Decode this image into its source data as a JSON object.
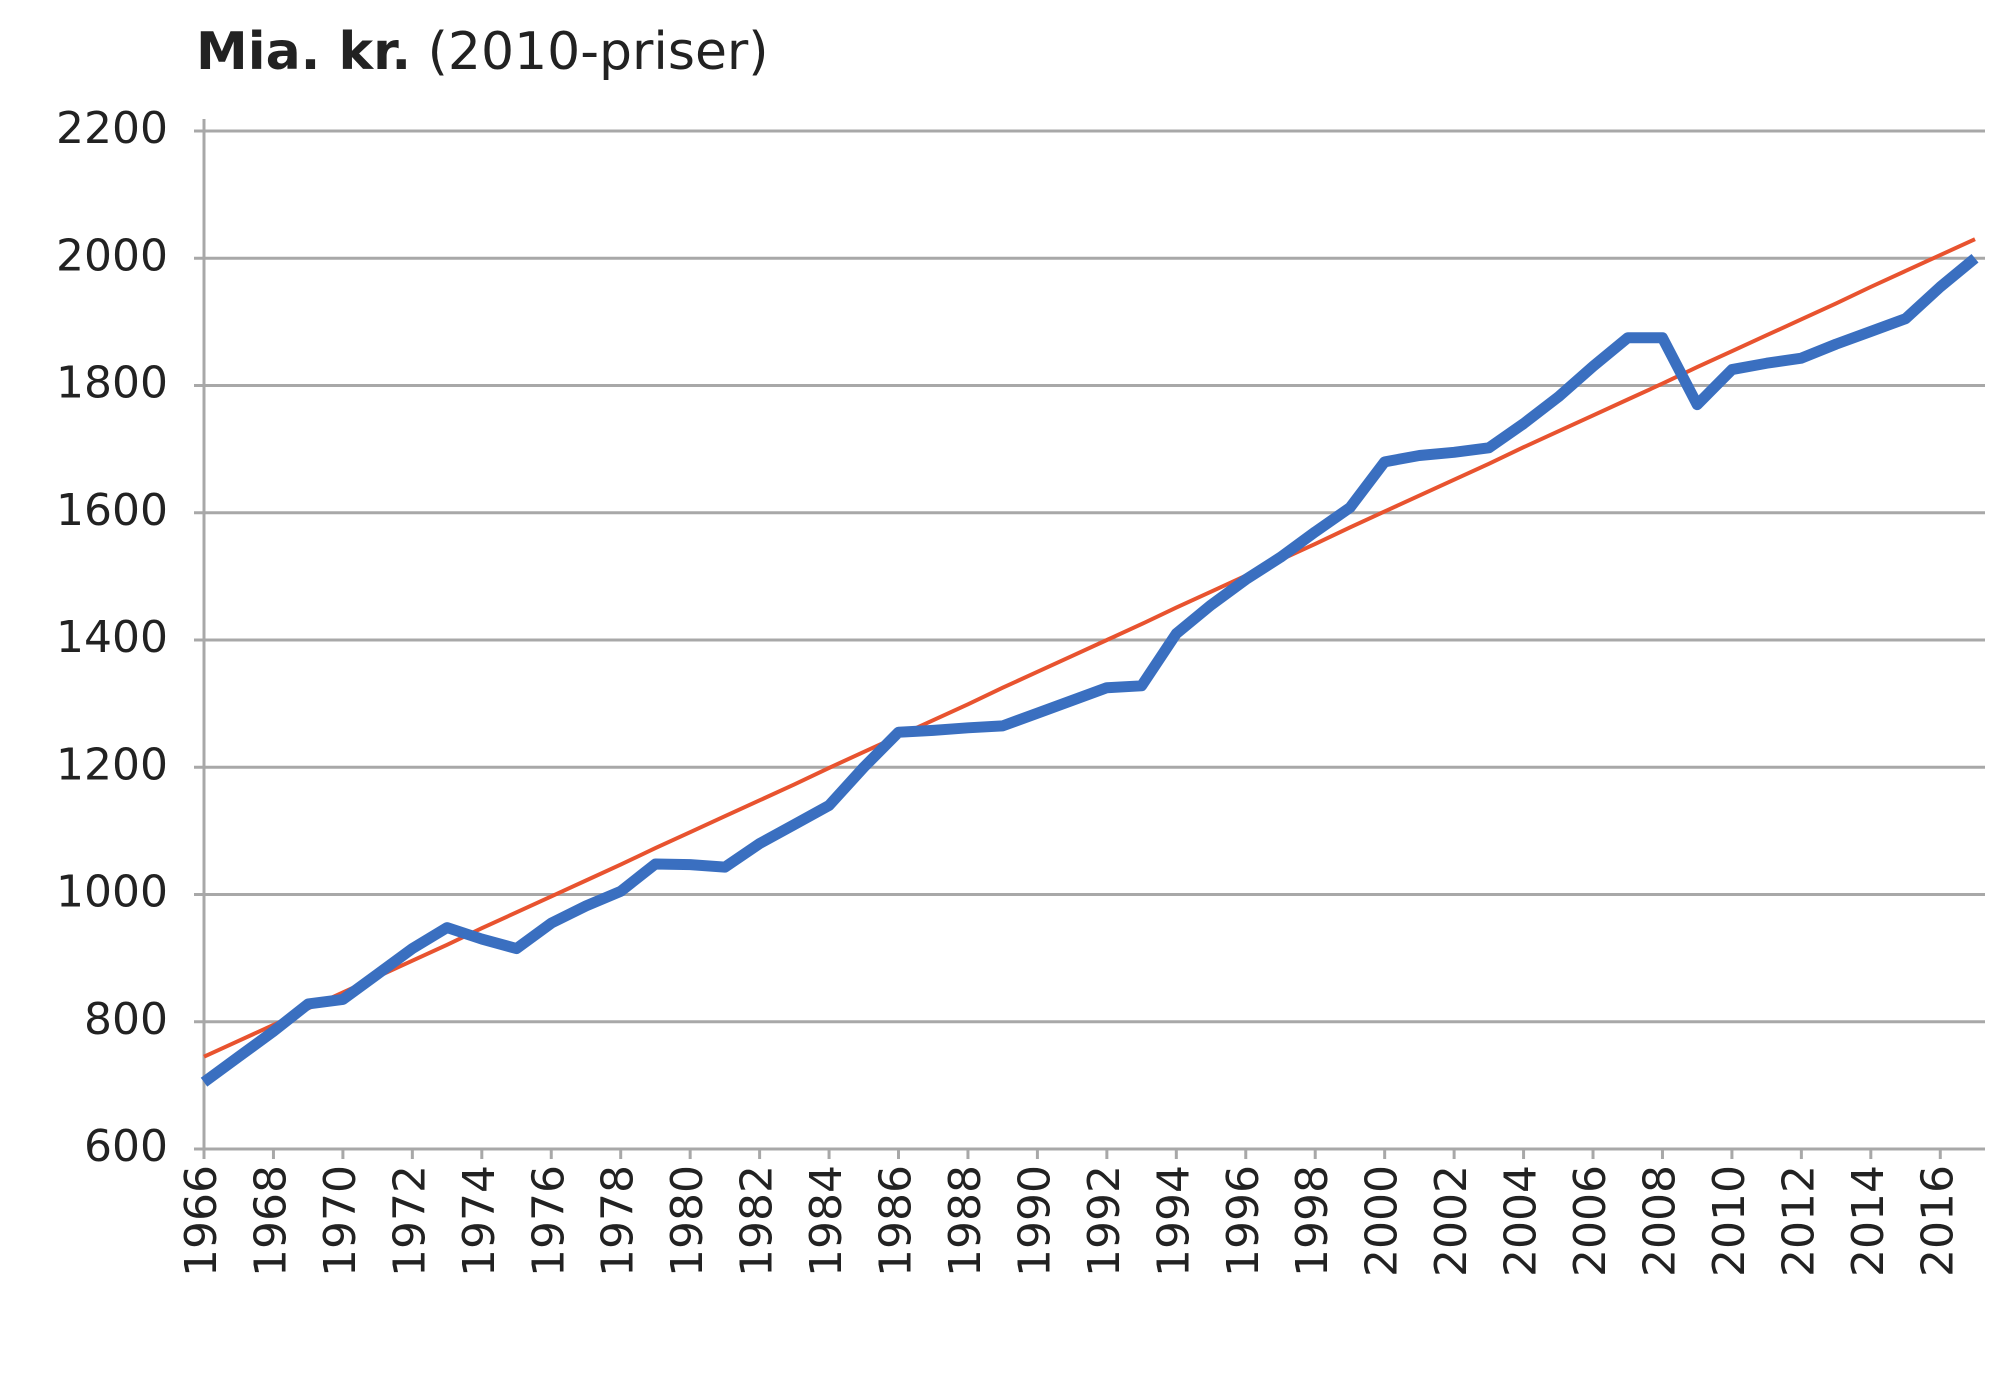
{
  "chart_data": {
    "type": "line",
    "title": "Mia. kr.",
    "subtitle": "(2010-priser)",
    "x": [
      1966,
      1967,
      1968,
      1969,
      1970,
      1971,
      1972,
      1973,
      1974,
      1975,
      1976,
      1977,
      1978,
      1979,
      1980,
      1981,
      1982,
      1983,
      1984,
      1985,
      1986,
      1987,
      1988,
      1989,
      1990,
      1991,
      1992,
      1993,
      1994,
      1995,
      1996,
      1997,
      1998,
      1999,
      2000,
      2001,
      2002,
      2003,
      2004,
      2005,
      2006,
      2007,
      2008,
      2009,
      2010,
      2011,
      2012,
      2013,
      2014,
      2015,
      2016,
      2017
    ],
    "series": [
      {
        "color": "#3a6fc0",
        "values": [
          705,
          745,
          785,
          828,
          835,
          875,
          915,
          948,
          930,
          915,
          955,
          982,
          1005,
          1048,
          1047,
          1043,
          1080,
          1110,
          1140,
          1200,
          1255,
          1258,
          1262,
          1265,
          1285,
          1305,
          1325,
          1328,
          1410,
          1455,
          1495,
          1530,
          1570,
          1608,
          1680,
          1690,
          1695,
          1702,
          1740,
          1782,
          1830,
          1875,
          1875,
          1770,
          1825,
          1835,
          1843,
          1865,
          1885,
          1905,
          1955,
          2000
        ]
      },
      {
        "color": "#e8532f",
        "values": [
          745,
          770,
          795,
          821,
          846,
          871,
          896,
          921,
          947,
          972,
          997,
          1022,
          1047,
          1073,
          1098,
          1123,
          1148,
          1173,
          1199,
          1224,
          1249,
          1274,
          1299,
          1325,
          1350,
          1375,
          1400,
          1425,
          1451,
          1476,
          1501,
          1526,
          1551,
          1577,
          1602,
          1627,
          1652,
          1677,
          1703,
          1728,
          1753,
          1778,
          1803,
          1829,
          1854,
          1879,
          1904,
          1929,
          1955,
          1980,
          2005,
          2030
        ]
      }
    ],
    "xlim": [
      1966,
      2017
    ],
    "xticks": [
      1966,
      1968,
      1970,
      1972,
      1974,
      1976,
      1978,
      1980,
      1982,
      1984,
      1986,
      1988,
      1990,
      1992,
      1994,
      1996,
      1998,
      2000,
      2002,
      2004,
      2006,
      2008,
      2010,
      2012,
      2014,
      2016
    ],
    "ylim": [
      600,
      2200
    ],
    "yticks": [
      600,
      800,
      1000,
      1200,
      1400,
      1600,
      1800,
      2000,
      2200
    ],
    "grid": true
  }
}
